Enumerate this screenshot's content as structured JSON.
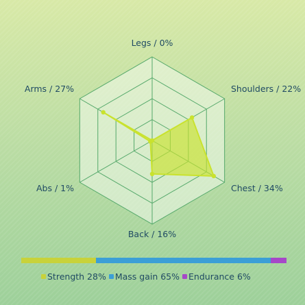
{
  "chart_data": {
    "type": "radar",
    "axes": [
      {
        "name": "Legs",
        "value": 0,
        "label": "Legs / 0%"
      },
      {
        "name": "Shoulders",
        "value": 22,
        "label": "Shoulders / 22%"
      },
      {
        "name": "Chest",
        "value": 34,
        "label": "Chest / 34%"
      },
      {
        "name": "Back",
        "value": 16,
        "label": "Back / 16%"
      },
      {
        "name": "Abs",
        "value": 1,
        "label": "Abs / 1%"
      },
      {
        "name": "Arms",
        "value": 27,
        "label": "Arms / 27%"
      }
    ],
    "range": [
      0,
      40
    ],
    "rings": 4,
    "series_color": "#c9e22e",
    "goal_breakdown": [
      {
        "label": "Strength 28%",
        "value": 28,
        "color": "#c8d23a"
      },
      {
        "label": "Mass gain 65%",
        "value": 65,
        "color": "#3c9fd6"
      },
      {
        "label": "Endurance 6%",
        "value": 6,
        "color": "#a648c8"
      }
    ]
  }
}
